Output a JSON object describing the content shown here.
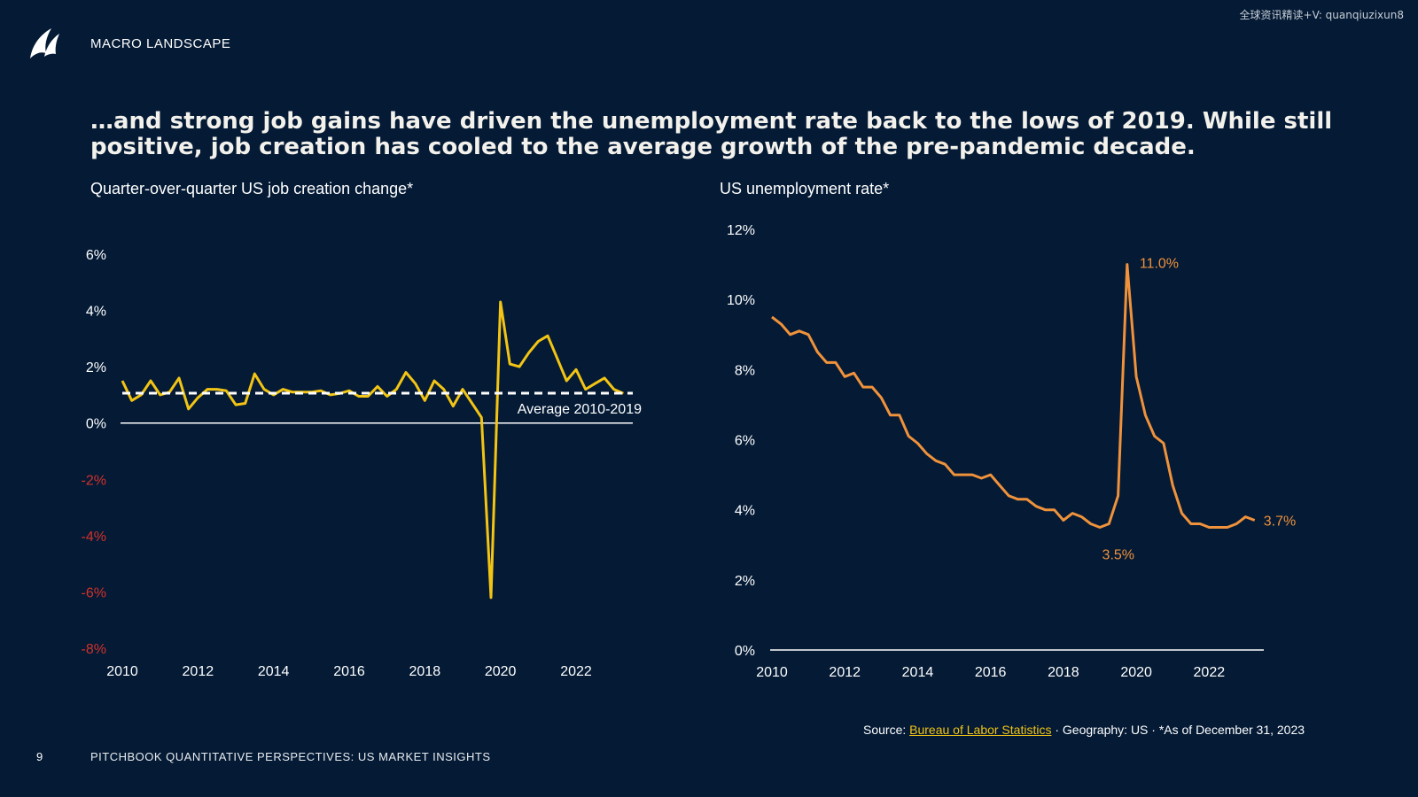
{
  "watermark": "全球资讯精读+V: quanqiuzixun8",
  "header": {
    "section": "MACRO LANDSCAPE"
  },
  "headline": "…and strong job gains have driven the unemployment rate back to the lows of 2019. While still positive, job creation has cooled to the average growth of the pre-pandemic decade.",
  "colors": {
    "background": "#041a35",
    "job_series": "#f2c414",
    "unemployment_series": "#f0923b",
    "negative_ticks": "#d3322b",
    "average_line": "#ffffff"
  },
  "source": {
    "prefix": "Source: ",
    "link": "Bureau of Labor Statistics",
    "suffix": "  ·  Geography: US  ·  *As of December 31, 2023"
  },
  "footer": {
    "page": "9",
    "text": "PITCHBOOK QUANTITATIVE PERSPECTIVES: US MARKET INSIGHTS"
  },
  "chart_data": [
    {
      "type": "line",
      "title": "Quarter-over-quarter US job creation change*",
      "xlim": [
        2010,
        2023.5
      ],
      "ylim": [
        -8,
        6
      ],
      "y_ticks": [
        6,
        4,
        2,
        0,
        -2,
        -4,
        -6,
        -8
      ],
      "y_tick_labels": [
        "6%",
        "4%",
        "2%",
        "0%",
        "-2%",
        "-4%",
        "-6%",
        "-8%"
      ],
      "x_ticks": [
        2010,
        2012,
        2014,
        2016,
        2018,
        2020,
        2022
      ],
      "x_tick_labels": [
        "2010",
        "2012",
        "2014",
        "2016",
        "2018",
        "2020",
        "2022"
      ],
      "reference_line": {
        "label": "Average 2010-2019",
        "value": 1.06
      },
      "series": [
        {
          "x": [
            2010,
            2010.25,
            2010.5,
            2010.75,
            2011,
            2011.25,
            2011.5,
            2011.75,
            2012,
            2012.25,
            2012.5,
            2012.75,
            2013,
            2013.25,
            2013.5,
            2013.75,
            2014,
            2014.25,
            2014.5,
            2014.75,
            2015,
            2015.25,
            2015.5,
            2015.75,
            2016,
            2016.25,
            2016.5,
            2016.75,
            2017,
            2017.25,
            2017.5,
            2017.75,
            2018,
            2018.25,
            2018.5,
            2018.75,
            2019,
            2019.25,
            2019.5,
            2019.75,
            2020,
            2020.25,
            2020.5,
            2020.75,
            2021,
            2021.25,
            2021.5,
            2021.75,
            2022,
            2022.25,
            2022.5,
            2022.75,
            2023,
            2023.25
          ],
          "values": [
            1.5,
            0.8,
            1.0,
            1.5,
            1.0,
            1.1,
            1.6,
            0.5,
            0.9,
            1.2,
            1.2,
            1.15,
            0.65,
            0.7,
            1.75,
            1.2,
            1.0,
            1.2,
            1.1,
            1.1,
            1.1,
            1.15,
            1.0,
            1.05,
            1.15,
            0.95,
            0.95,
            1.3,
            0.95,
            1.2,
            1.8,
            1.4,
            0.8,
            1.5,
            1.2,
            0.6,
            1.2,
            0.7,
            0.2,
            -6.2,
            4.3,
            2.1,
            2.0,
            2.5,
            2.9,
            3.1,
            2.3,
            1.5,
            1.9,
            1.2,
            1.4,
            1.6,
            1.2,
            1.05
          ]
        }
      ]
    },
    {
      "type": "line",
      "title": "US unemployment rate*",
      "xlim": [
        2010,
        2023.5
      ],
      "ylim": [
        0,
        12
      ],
      "y_ticks": [
        12,
        10,
        8,
        6,
        4,
        2,
        0
      ],
      "y_tick_labels": [
        "12%",
        "10%",
        "8%",
        "6%",
        "4%",
        "2%",
        "0%"
      ],
      "x_ticks": [
        2010,
        2012,
        2014,
        2016,
        2018,
        2020,
        2022
      ],
      "x_tick_labels": [
        "2010",
        "2012",
        "2014",
        "2016",
        "2018",
        "2020",
        "2022"
      ],
      "annotations": [
        {
          "label": "11.0%",
          "x": 2019.75,
          "y": 11.0
        },
        {
          "label": "3.5%",
          "x": 2019.5,
          "y": 3.5
        },
        {
          "label": "3.7%",
          "x": 2023.25,
          "y": 3.7
        }
      ],
      "series": [
        {
          "x": [
            2010,
            2010.25,
            2010.5,
            2010.75,
            2011,
            2011.25,
            2011.5,
            2011.75,
            2012,
            2012.25,
            2012.5,
            2012.75,
            2013,
            2013.25,
            2013.5,
            2013.75,
            2014,
            2014.25,
            2014.5,
            2014.75,
            2015,
            2015.25,
            2015.5,
            2015.75,
            2016,
            2016.25,
            2016.5,
            2016.75,
            2017,
            2017.25,
            2017.5,
            2017.75,
            2018,
            2018.25,
            2018.5,
            2018.75,
            2019,
            2019.25,
            2019.5,
            2019.75,
            2020,
            2020.25,
            2020.5,
            2020.75,
            2021,
            2021.25,
            2021.5,
            2021.75,
            2022,
            2022.25,
            2022.5,
            2022.75,
            2023,
            2023.25
          ],
          "values": [
            9.5,
            9.3,
            9.0,
            9.1,
            9.0,
            8.5,
            8.2,
            8.2,
            7.8,
            7.9,
            7.5,
            7.5,
            7.2,
            6.7,
            6.7,
            6.1,
            5.9,
            5.6,
            5.4,
            5.3,
            5.0,
            5.0,
            5.0,
            4.9,
            5.0,
            4.7,
            4.4,
            4.3,
            4.3,
            4.1,
            4.0,
            4.0,
            3.7,
            3.9,
            3.8,
            3.6,
            3.5,
            3.6,
            4.4,
            11.0,
            7.8,
            6.7,
            6.1,
            5.9,
            4.7,
            3.9,
            3.6,
            3.6,
            3.5,
            3.5,
            3.5,
            3.6,
            3.8,
            3.7
          ]
        }
      ]
    }
  ]
}
